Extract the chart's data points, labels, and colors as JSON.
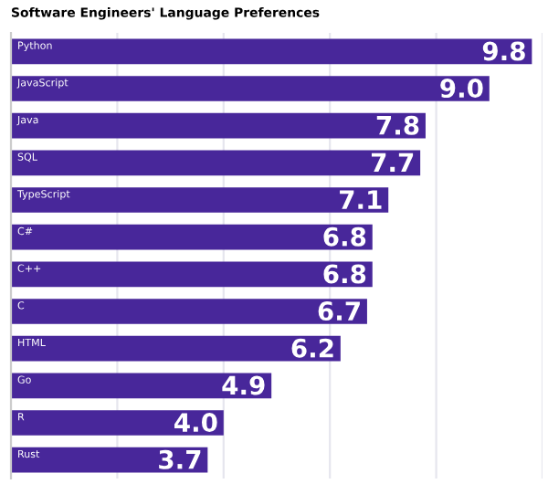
{
  "chart_data": {
    "type": "bar",
    "orientation": "horizontal",
    "title": "Software Engineers' Language Preferences",
    "categories": [
      "Python",
      "JavaScript",
      "Java",
      "SQL",
      "TypeScript",
      "C#",
      "C++",
      "C",
      "HTML",
      "Go",
      "R",
      "Rust"
    ],
    "values": [
      9.8,
      9.0,
      7.8,
      7.7,
      7.1,
      6.8,
      6.8,
      6.7,
      6.2,
      4.9,
      4.0,
      3.7
    ],
    "color": "#48279a",
    "xlim": [
      0,
      10
    ],
    "xticks": [
      {
        "value": 0,
        "label": null
      },
      {
        "value": 2,
        "label": null
      },
      {
        "value": 4,
        "label": null
      },
      {
        "value": 6,
        "label": null
      },
      {
        "value": 8,
        "label": null
      },
      {
        "value": 10,
        "label": null
      }
    ],
    "value_labels": [
      "9.8",
      "9.0",
      "7.8",
      "7.7",
      "7.1",
      "6.8",
      "6.8",
      "6.7",
      "6.2",
      "4.9",
      "4.0",
      "3.7"
    ],
    "grid": "x"
  }
}
